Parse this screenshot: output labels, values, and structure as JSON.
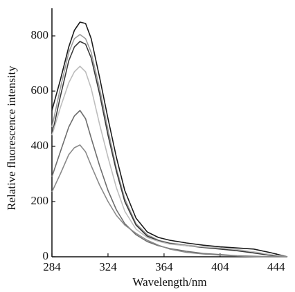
{
  "chart_data": {
    "type": "line",
    "x_label": "Wavelength/nm",
    "y_label": "Relative fluorescence intensity",
    "x": [
      284,
      290,
      296,
      300,
      304,
      308,
      312,
      318,
      324,
      330,
      336,
      344,
      352,
      360,
      368,
      380,
      392,
      404,
      416,
      428,
      440,
      452
    ],
    "series": [
      {
        "color": "#1a1a1a",
        "values": [
          530,
          640,
          760,
          820,
          850,
          845,
          790,
          650,
          500,
          360,
          240,
          140,
          90,
          70,
          60,
          50,
          42,
          36,
          32,
          28,
          15,
          0
        ]
      },
      {
        "color": "#9a9a9a",
        "values": [
          470,
          610,
          740,
          790,
          805,
          790,
          740,
          610,
          460,
          320,
          210,
          120,
          80,
          60,
          50,
          42,
          36,
          30,
          24,
          16,
          6,
          0
        ]
      },
      {
        "color": "#3a3a3a",
        "values": [
          440,
          580,
          710,
          760,
          780,
          770,
          720,
          590,
          440,
          310,
          200,
          115,
          75,
          58,
          48,
          40,
          34,
          28,
          22,
          14,
          5,
          0
        ]
      },
      {
        "color": "#bdbdbd",
        "values": [
          440,
          540,
          630,
          670,
          690,
          670,
          610,
          480,
          360,
          250,
          165,
          100,
          70,
          56,
          46,
          40,
          36,
          32,
          26,
          18,
          8,
          0
        ]
      },
      {
        "color": "#6e6e6e",
        "values": [
          290,
          380,
          470,
          510,
          530,
          500,
          430,
          330,
          240,
          170,
          120,
          80,
          55,
          40,
          30,
          20,
          12,
          8,
          4,
          2,
          0,
          0
        ]
      },
      {
        "color": "#8a8a8a",
        "values": [
          235,
          300,
          370,
          395,
          405,
          380,
          330,
          260,
          200,
          150,
          115,
          85,
          60,
          42,
          28,
          16,
          10,
          6,
          3,
          1,
          0,
          0
        ]
      }
    ],
    "xlim": [
      284,
      452
    ],
    "ylim": [
      0,
      900
    ],
    "xticks": [
      284,
      324,
      364,
      404,
      444
    ],
    "yticks": [
      0,
      200,
      400,
      600,
      800
    ]
  }
}
